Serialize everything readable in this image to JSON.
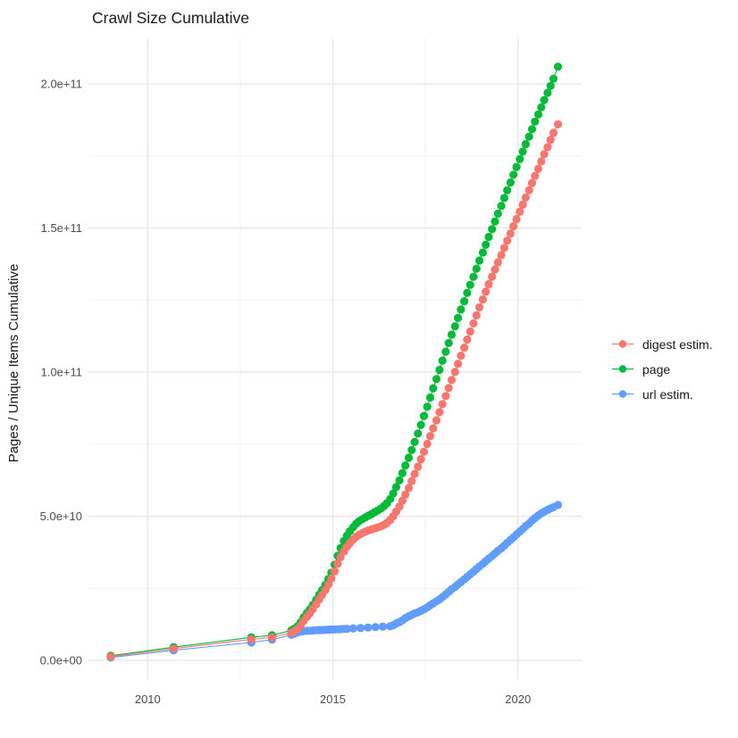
{
  "page_title": "Crawl Size Cumulative",
  "chart_data": {
    "type": "line",
    "title": "Crawl Size Cumulative",
    "xlabel": "",
    "ylabel": "Pages / Unique Items Cumulative",
    "values_unit": "billions of pages (1e9)",
    "grid": true,
    "legend_position": "right",
    "xlim": [
      2008.4,
      2021.72
    ],
    "ylim_e9": [
      -6.8,
      215.8
    ],
    "x_ticks": [
      {
        "label": "2010",
        "value": 2010
      },
      {
        "label": "2015",
        "value": 2015
      },
      {
        "label": "2020",
        "value": 2020
      }
    ],
    "x_minor": [
      2012.5,
      2017.5
    ],
    "y_ticks": [
      {
        "label": "0.0e+00",
        "value": 0
      },
      {
        "label": "5.0e+10",
        "value": 50
      },
      {
        "label": "1.0e+11",
        "value": 100
      },
      {
        "label": "1.5e+11",
        "value": 150
      },
      {
        "label": "2.0e+11",
        "value": 200
      }
    ],
    "y_minor": [
      25,
      75,
      125,
      175
    ],
    "draw_order": [
      2,
      1,
      0
    ],
    "series": [
      {
        "name": "digest estim.",
        "color": "#F8766D",
        "points": [
          [
            2009.0,
            1.3
          ],
          [
            2010.7,
            4.1
          ],
          [
            2012.8,
            7.3
          ],
          [
            2013.36,
            8.0
          ],
          [
            2013.88,
            9.6
          ],
          [
            2013.96,
            10.1
          ],
          [
            2014.05,
            10.9
          ],
          [
            2014.13,
            12.1
          ],
          [
            2014.21,
            13.7
          ],
          [
            2014.3,
            15.1
          ],
          [
            2014.38,
            16.4
          ],
          [
            2014.46,
            17.8
          ],
          [
            2014.55,
            19.5
          ],
          [
            2014.63,
            21.2
          ],
          [
            2014.71,
            22.7
          ],
          [
            2014.8,
            24.4
          ],
          [
            2014.88,
            26.3
          ],
          [
            2014.96,
            28.4
          ],
          [
            2015.05,
            30.9
          ],
          [
            2015.13,
            33.5
          ],
          [
            2015.21,
            35.8
          ],
          [
            2015.3,
            37.8
          ],
          [
            2015.38,
            39.4
          ],
          [
            2015.46,
            40.7
          ],
          [
            2015.55,
            41.9
          ],
          [
            2015.63,
            42.9
          ],
          [
            2015.71,
            43.6
          ],
          [
            2015.8,
            44.2
          ],
          [
            2015.88,
            44.7
          ],
          [
            2015.96,
            45.1
          ],
          [
            2016.05,
            45.5
          ],
          [
            2016.13,
            45.8
          ],
          [
            2016.21,
            46.1
          ],
          [
            2016.3,
            46.5
          ],
          [
            2016.38,
            47.0
          ],
          [
            2016.46,
            47.7
          ],
          [
            2016.55,
            48.7
          ],
          [
            2016.63,
            50.0
          ],
          [
            2016.71,
            51.6
          ],
          [
            2016.8,
            53.4
          ],
          [
            2016.88,
            55.4
          ],
          [
            2016.96,
            57.5
          ],
          [
            2017.05,
            59.8
          ],
          [
            2017.13,
            62.2
          ],
          [
            2017.21,
            64.7
          ],
          [
            2017.3,
            67.2
          ],
          [
            2017.38,
            69.8
          ],
          [
            2017.46,
            72.4
          ],
          [
            2017.55,
            75.1
          ],
          [
            2017.63,
            77.8
          ],
          [
            2017.71,
            80.5
          ],
          [
            2017.8,
            83.3
          ],
          [
            2017.88,
            86.1
          ],
          [
            2017.96,
            88.9
          ],
          [
            2018.05,
            91.7
          ],
          [
            2018.13,
            94.5
          ],
          [
            2018.21,
            97.3
          ],
          [
            2018.3,
            100.1
          ],
          [
            2018.38,
            102.9
          ],
          [
            2018.46,
            105.7
          ],
          [
            2018.55,
            108.5
          ],
          [
            2018.63,
            111.3
          ],
          [
            2018.71,
            114.1
          ],
          [
            2018.8,
            116.9
          ],
          [
            2018.88,
            119.7
          ],
          [
            2018.96,
            122.5
          ],
          [
            2019.05,
            125.2
          ],
          [
            2019.13,
            127.9
          ],
          [
            2019.21,
            130.5
          ],
          [
            2019.3,
            133.1
          ],
          [
            2019.38,
            135.6
          ],
          [
            2019.46,
            138.1
          ],
          [
            2019.55,
            140.6
          ],
          [
            2019.63,
            143.1
          ],
          [
            2019.71,
            145.6
          ],
          [
            2019.8,
            148.1
          ],
          [
            2019.88,
            150.6
          ],
          [
            2019.96,
            153.1
          ],
          [
            2020.05,
            155.6
          ],
          [
            2020.13,
            158.1
          ],
          [
            2020.21,
            160.6
          ],
          [
            2020.3,
            163.1
          ],
          [
            2020.38,
            165.6
          ],
          [
            2020.46,
            168.1
          ],
          [
            2020.55,
            170.6
          ],
          [
            2020.63,
            173.1
          ],
          [
            2020.71,
            175.6
          ],
          [
            2020.8,
            178.1
          ],
          [
            2020.88,
            180.6
          ],
          [
            2020.96,
            183.0
          ],
          [
            2021.08,
            186.0
          ]
        ]
      },
      {
        "name": "page",
        "color": "#00BA38",
        "points": [
          [
            2009.0,
            1.6
          ],
          [
            2010.7,
            4.6
          ],
          [
            2012.8,
            8.0
          ],
          [
            2013.36,
            8.7
          ],
          [
            2013.88,
            10.4
          ],
          [
            2013.96,
            11.0
          ],
          [
            2014.05,
            11.8
          ],
          [
            2014.13,
            13.2
          ],
          [
            2014.21,
            14.9
          ],
          [
            2014.3,
            16.4
          ],
          [
            2014.38,
            17.7
          ],
          [
            2014.46,
            19.2
          ],
          [
            2014.55,
            21.0
          ],
          [
            2014.63,
            22.8
          ],
          [
            2014.71,
            24.4
          ],
          [
            2014.8,
            26.2
          ],
          [
            2014.88,
            28.2
          ],
          [
            2014.96,
            30.4
          ],
          [
            2015.05,
            33.2
          ],
          [
            2015.13,
            36.3
          ],
          [
            2015.21,
            39.0
          ],
          [
            2015.3,
            41.4
          ],
          [
            2015.38,
            43.3
          ],
          [
            2015.46,
            44.8
          ],
          [
            2015.55,
            46.2
          ],
          [
            2015.63,
            47.4
          ],
          [
            2015.71,
            48.3
          ],
          [
            2015.8,
            49.0
          ],
          [
            2015.88,
            49.6
          ],
          [
            2015.96,
            50.2
          ],
          [
            2016.05,
            50.8
          ],
          [
            2016.13,
            51.4
          ],
          [
            2016.21,
            52.0
          ],
          [
            2016.3,
            52.7
          ],
          [
            2016.38,
            53.5
          ],
          [
            2016.46,
            54.5
          ],
          [
            2016.55,
            56.0
          ],
          [
            2016.63,
            57.9
          ],
          [
            2016.71,
            60.1
          ],
          [
            2016.8,
            62.5
          ],
          [
            2016.88,
            65.0
          ],
          [
            2016.96,
            67.6
          ],
          [
            2017.05,
            70.3
          ],
          [
            2017.13,
            73.0
          ],
          [
            2017.21,
            75.8
          ],
          [
            2017.3,
            78.7
          ],
          [
            2017.38,
            81.7
          ],
          [
            2017.46,
            84.8
          ],
          [
            2017.55,
            88.0
          ],
          [
            2017.63,
            91.2
          ],
          [
            2017.71,
            94.4
          ],
          [
            2017.8,
            97.6
          ],
          [
            2017.88,
            100.8
          ],
          [
            2017.96,
            104.0
          ],
          [
            2018.05,
            107.1
          ],
          [
            2018.13,
            110.1
          ],
          [
            2018.21,
            113.0
          ],
          [
            2018.3,
            115.9
          ],
          [
            2018.38,
            118.8
          ],
          [
            2018.46,
            121.7
          ],
          [
            2018.55,
            124.6
          ],
          [
            2018.63,
            127.5
          ],
          [
            2018.71,
            130.3
          ],
          [
            2018.8,
            133.1
          ],
          [
            2018.88,
            135.9
          ],
          [
            2018.96,
            138.7
          ],
          [
            2019.05,
            141.5
          ],
          [
            2019.13,
            144.2
          ],
          [
            2019.21,
            146.9
          ],
          [
            2019.3,
            149.6
          ],
          [
            2019.38,
            152.3
          ],
          [
            2019.46,
            155.0
          ],
          [
            2019.55,
            157.7
          ],
          [
            2019.63,
            160.4
          ],
          [
            2019.71,
            163.1
          ],
          [
            2019.8,
            165.8
          ],
          [
            2019.88,
            168.5
          ],
          [
            2019.96,
            171.2
          ],
          [
            2020.05,
            173.9
          ],
          [
            2020.13,
            176.5
          ],
          [
            2020.21,
            179.1
          ],
          [
            2020.3,
            181.7
          ],
          [
            2020.38,
            184.3
          ],
          [
            2020.46,
            186.9
          ],
          [
            2020.55,
            189.4
          ],
          [
            2020.63,
            191.9
          ],
          [
            2020.71,
            194.4
          ],
          [
            2020.8,
            196.9
          ],
          [
            2020.88,
            199.3
          ],
          [
            2020.96,
            201.8
          ],
          [
            2021.08,
            206.0
          ]
        ]
      },
      {
        "name": "url estim.",
        "color": "#619CFF",
        "points": [
          [
            2009.0,
            1.0
          ],
          [
            2010.7,
            3.5
          ],
          [
            2012.8,
            6.2
          ],
          [
            2013.36,
            7.2
          ],
          [
            2013.88,
            8.9
          ],
          [
            2013.96,
            9.3
          ],
          [
            2014.05,
            9.7
          ],
          [
            2014.13,
            10.0
          ],
          [
            2014.21,
            10.15
          ],
          [
            2014.3,
            10.25
          ],
          [
            2014.38,
            10.3
          ],
          [
            2014.46,
            10.38
          ],
          [
            2014.55,
            10.45
          ],
          [
            2014.63,
            10.5
          ],
          [
            2014.71,
            10.55
          ],
          [
            2014.8,
            10.6
          ],
          [
            2014.88,
            10.65
          ],
          [
            2014.96,
            10.7
          ],
          [
            2015.05,
            10.75
          ],
          [
            2015.13,
            10.8
          ],
          [
            2015.21,
            10.85
          ],
          [
            2015.3,
            10.9
          ],
          [
            2015.38,
            10.95
          ],
          [
            2015.55,
            11.1
          ],
          [
            2015.75,
            11.25
          ],
          [
            2015.95,
            11.4
          ],
          [
            2016.15,
            11.55
          ],
          [
            2016.35,
            11.7
          ],
          [
            2016.55,
            11.85
          ],
          [
            2016.63,
            12.2
          ],
          [
            2016.71,
            12.8
          ],
          [
            2016.8,
            13.3
          ],
          [
            2016.88,
            13.9
          ],
          [
            2016.96,
            14.7
          ],
          [
            2017.05,
            15.3
          ],
          [
            2017.13,
            15.8
          ],
          [
            2017.21,
            16.3
          ],
          [
            2017.3,
            16.7
          ],
          [
            2017.38,
            17.2
          ],
          [
            2017.46,
            17.7
          ],
          [
            2017.55,
            18.4
          ],
          [
            2017.63,
            19.1
          ],
          [
            2017.71,
            19.8
          ],
          [
            2017.8,
            20.5
          ],
          [
            2017.88,
            21.2
          ],
          [
            2017.96,
            22.0
          ],
          [
            2018.05,
            22.9
          ],
          [
            2018.13,
            23.8
          ],
          [
            2018.21,
            24.7
          ],
          [
            2018.3,
            25.5
          ],
          [
            2018.38,
            26.4
          ],
          [
            2018.46,
            27.2
          ],
          [
            2018.55,
            28.1
          ],
          [
            2018.63,
            29.0
          ],
          [
            2018.71,
            29.9
          ],
          [
            2018.8,
            30.8
          ],
          [
            2018.88,
            31.7
          ],
          [
            2018.96,
            32.6
          ],
          [
            2019.05,
            33.5
          ],
          [
            2019.13,
            34.4
          ],
          [
            2019.21,
            35.3
          ],
          [
            2019.3,
            36.2
          ],
          [
            2019.38,
            37.1
          ],
          [
            2019.46,
            38.0
          ],
          [
            2019.55,
            38.9
          ],
          [
            2019.63,
            39.8
          ],
          [
            2019.71,
            40.8
          ],
          [
            2019.8,
            41.8
          ],
          [
            2019.88,
            42.7
          ],
          [
            2019.96,
            43.7
          ],
          [
            2020.05,
            44.7
          ],
          [
            2020.13,
            45.6
          ],
          [
            2020.21,
            46.6
          ],
          [
            2020.3,
            47.5
          ],
          [
            2020.38,
            48.5
          ],
          [
            2020.46,
            49.4
          ],
          [
            2020.55,
            50.3
          ],
          [
            2020.63,
            51.0
          ],
          [
            2020.71,
            51.6
          ],
          [
            2020.8,
            52.2
          ],
          [
            2020.88,
            52.7
          ],
          [
            2020.96,
            53.2
          ],
          [
            2021.08,
            53.9
          ]
        ]
      }
    ]
  },
  "style": {
    "grid_major_color": "#E4E4E4",
    "grid_minor_color": "#EFEFEF",
    "tick_text_color": "#4D4D4D",
    "title_color": "#1a1a1a",
    "point_radius": 4.6
  }
}
